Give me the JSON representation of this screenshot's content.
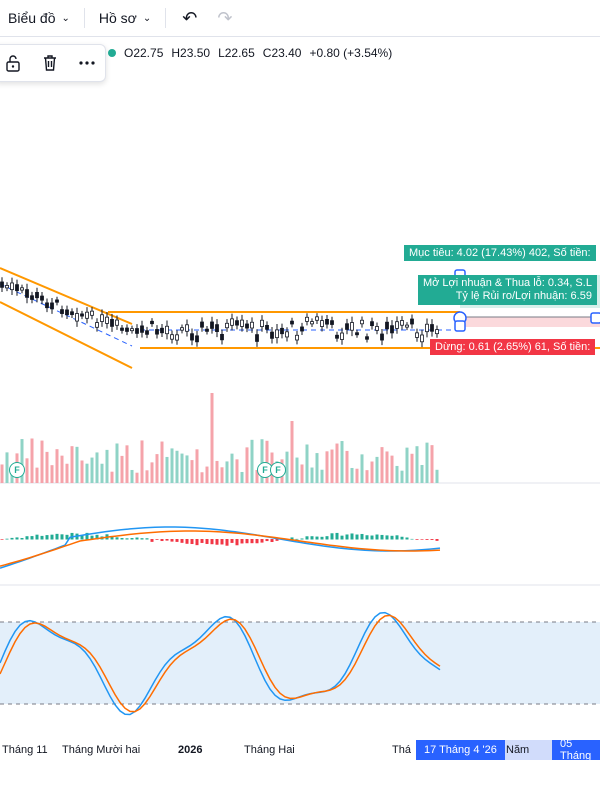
{
  "toolbar": {
    "chart_label": "Biểu đồ",
    "profile_label": "Hồ sơ"
  },
  "ohlc": {
    "open": "O22.75",
    "high": "H23.50",
    "low": "L22.65",
    "close": "C23.40",
    "change": "+0.80 (+3.54%)"
  },
  "colors": {
    "up": "#22ab94",
    "down": "#f23645",
    "channel": "#ff9800",
    "accent": "#2962ff"
  },
  "position": {
    "target_label": "Mục tiêu: 4.02 (17.43%) 402, Số tiền:",
    "pnl_label": "Mở Lợi nhuận & Thua lỗ: 0.34, S.L",
    "rr_label": "Tỷ lệ Rủi ro/Lợi nhuận: 6.59",
    "stop_label": "Dừng: 0.61 (2.65%) 61, Số tiền:"
  },
  "markers": {
    "financial": "F"
  },
  "time_axis": {
    "labels": [
      "Tháng 11",
      "Tháng Mười hai",
      "2026",
      "Tháng Hai",
      "Thá"
    ],
    "range_start": "17 Tháng 4 '26",
    "range_mid": "Năm",
    "range_end": "05 Tháng"
  },
  "icons": [
    "chevron-down-icon",
    "undo-icon",
    "redo-icon",
    "lock-icon",
    "trash-icon",
    "more-icon"
  ]
}
